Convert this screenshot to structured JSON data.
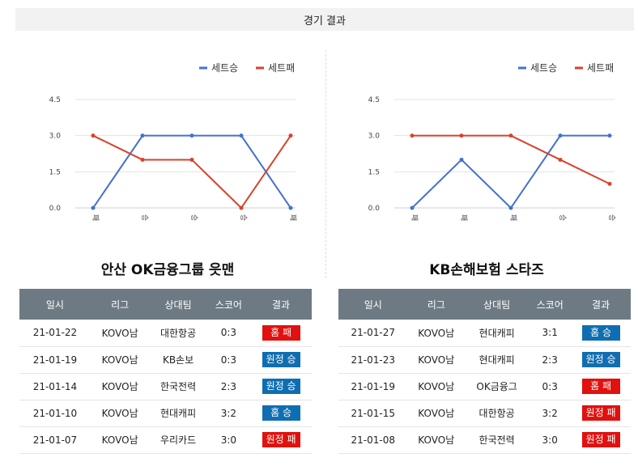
{
  "header": {
    "title": "경기 결과"
  },
  "legend": {
    "win_label": "세트승",
    "loss_label": "세트패"
  },
  "colors": {
    "win": "#4470cf",
    "loss": "#d8412c",
    "win_badge": "#0f6eb1",
    "loss_badge": "#e0110e",
    "header_row": "#6d7a84"
  },
  "table_headers": [
    "일시",
    "리그",
    "상대팀",
    "스코어",
    "결과"
  ],
  "teams": [
    {
      "name": "안산 OK금융그룹 읏맨",
      "rows": [
        {
          "date": "21-01-22",
          "league": "KOVO남",
          "opponent": "대한항공",
          "score": "0:3",
          "result": "홈 패",
          "outcome": "loss"
        },
        {
          "date": "21-01-19",
          "league": "KOVO남",
          "opponent": "KB손보",
          "score": "0:3",
          "result": "원정 승",
          "outcome": "win"
        },
        {
          "date": "21-01-14",
          "league": "KOVO남",
          "opponent": "한국전력",
          "score": "2:3",
          "result": "원정 승",
          "outcome": "win"
        },
        {
          "date": "21-01-10",
          "league": "KOVO남",
          "opponent": "현대캐피",
          "score": "3:2",
          "result": "홈 승",
          "outcome": "win"
        },
        {
          "date": "21-01-07",
          "league": "KOVO남",
          "opponent": "우리카드",
          "score": "3:0",
          "result": "원정 패",
          "outcome": "loss"
        }
      ]
    },
    {
      "name": "KB손해보험 스타즈",
      "rows": [
        {
          "date": "21-01-27",
          "league": "KOVO남",
          "opponent": "현대캐피",
          "score": "3:1",
          "result": "홈 승",
          "outcome": "win"
        },
        {
          "date": "21-01-23",
          "league": "KOVO남",
          "opponent": "현대캐피",
          "score": "2:3",
          "result": "원정 승",
          "outcome": "win"
        },
        {
          "date": "21-01-19",
          "league": "KOVO남",
          "opponent": "OK금융그",
          "score": "0:3",
          "result": "홈 패",
          "outcome": "loss"
        },
        {
          "date": "21-01-15",
          "league": "KOVO남",
          "opponent": "대한항공",
          "score": "3:2",
          "result": "원정 패",
          "outcome": "loss"
        },
        {
          "date": "21-01-08",
          "league": "KOVO남",
          "opponent": "한국전력",
          "score": "3:0",
          "result": "원정 패",
          "outcome": "loss"
        }
      ]
    }
  ],
  "chart_data": [
    {
      "type": "line",
      "categories": [
        "패",
        "승",
        "승",
        "승",
        "패"
      ],
      "ylim": [
        0,
        4.5
      ],
      "yticks": [
        "0.0",
        "1.5",
        "3.0",
        "4.5"
      ],
      "grid": true,
      "legend_position": "top-right",
      "series": [
        {
          "name": "세트승",
          "values": [
            0,
            3,
            3,
            3,
            0
          ]
        },
        {
          "name": "세트패",
          "values": [
            3,
            2,
            2,
            0,
            3
          ]
        }
      ]
    },
    {
      "type": "line",
      "categories": [
        "패",
        "패",
        "패",
        "승",
        "승"
      ],
      "ylim": [
        0,
        4.5
      ],
      "yticks": [
        "0.0",
        "1.5",
        "3.0",
        "4.5"
      ],
      "grid": true,
      "legend_position": "top-right",
      "series": [
        {
          "name": "세트승",
          "values": [
            0,
            2,
            0,
            3,
            3
          ]
        },
        {
          "name": "세트패",
          "values": [
            3,
            3,
            3,
            2,
            1
          ]
        }
      ]
    }
  ]
}
